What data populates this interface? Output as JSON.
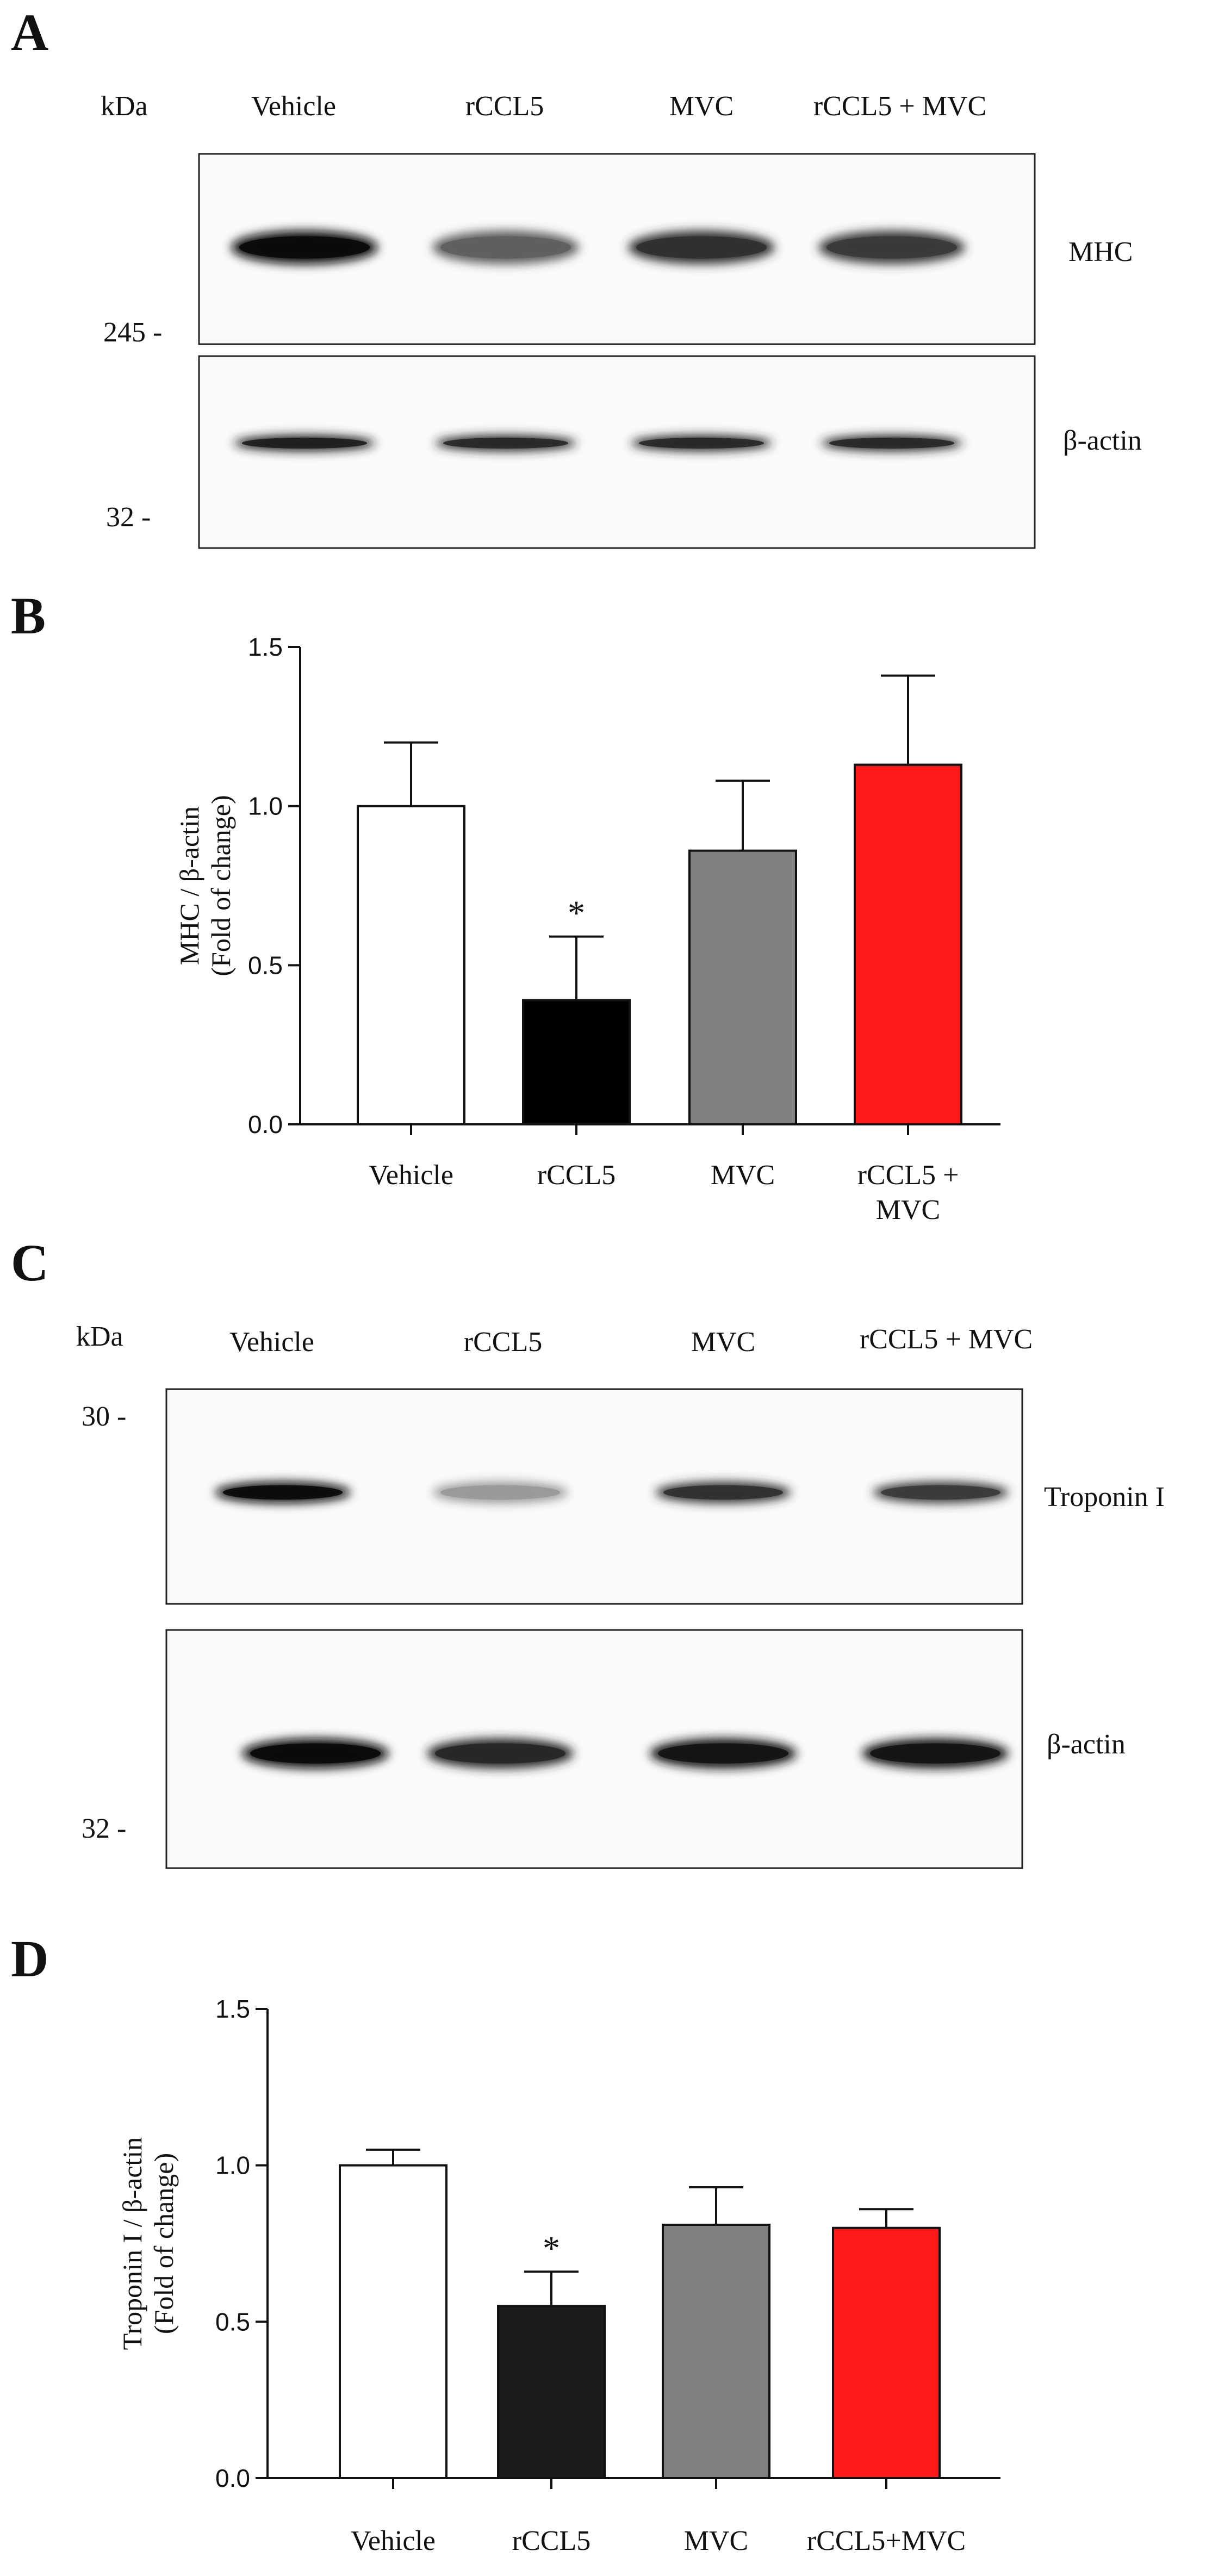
{
  "panels": {
    "A": {
      "letter": "A",
      "kda_label": "kDa",
      "lanes": [
        "Vehicle",
        "rCCL5",
        "MVC",
        "rCCL5 + MVC"
      ],
      "blots": [
        {
          "label": "MHC",
          "marker": "245 -",
          "band_intensity": [
            1.0,
            0.55,
            0.8,
            0.75
          ]
        },
        {
          "label": "β-actin",
          "marker": "32 -",
          "band_intensity": [
            0.9,
            0.85,
            0.85,
            0.85
          ]
        }
      ]
    },
    "C": {
      "letter": "C",
      "kda_label": "kDa",
      "lanes": [
        "Vehicle",
        "rCCL5",
        "MVC",
        "rCCL5 + MVC"
      ],
      "blots": [
        {
          "label": "Troponin I",
          "marker": "30 -",
          "band_intensity": [
            1.0,
            0.25,
            0.8,
            0.75
          ]
        },
        {
          "label": "β-actin",
          "marker": "32 -",
          "band_intensity": [
            1.0,
            0.85,
            0.95,
            0.95
          ]
        }
      ]
    }
  },
  "chart_data": [
    {
      "type": "bar",
      "panel_letter": "B",
      "categories": [
        "Vehicle",
        "rCCL5",
        "MVC",
        "rCCL5 +\nMVC"
      ],
      "values": [
        1.0,
        0.39,
        0.86,
        1.13
      ],
      "errors": [
        0.2,
        0.2,
        0.22,
        0.28
      ],
      "colors": [
        "#ffffff",
        "#000000",
        "#808080",
        "#ff1a1a"
      ],
      "significance": [
        "",
        "*",
        "",
        ""
      ],
      "ylabel": "MHC / β-actin",
      "ylabel2": "(Fold of change)",
      "ylim": [
        0,
        1.5
      ],
      "yticks": [
        "0.0",
        "0.5",
        "1.0",
        "1.5"
      ]
    },
    {
      "type": "bar",
      "panel_letter": "D",
      "categories": [
        "Vehicle",
        "rCCL5",
        "MVC",
        "rCCL5+MVC"
      ],
      "values": [
        1.0,
        0.55,
        0.81,
        0.8
      ],
      "errors": [
        0.05,
        0.11,
        0.12,
        0.06
      ],
      "colors": [
        "#ffffff",
        "#1a1a18",
        "#808080",
        "#ff1a1a"
      ],
      "significance": [
        "",
        "*",
        "",
        ""
      ],
      "ylabel": "Troponin I / β-actin",
      "ylabel2": "(Fold of change)",
      "ylim": [
        0,
        1.5
      ],
      "yticks": [
        "0.0",
        "0.5",
        "1.0",
        "1.5"
      ]
    }
  ]
}
